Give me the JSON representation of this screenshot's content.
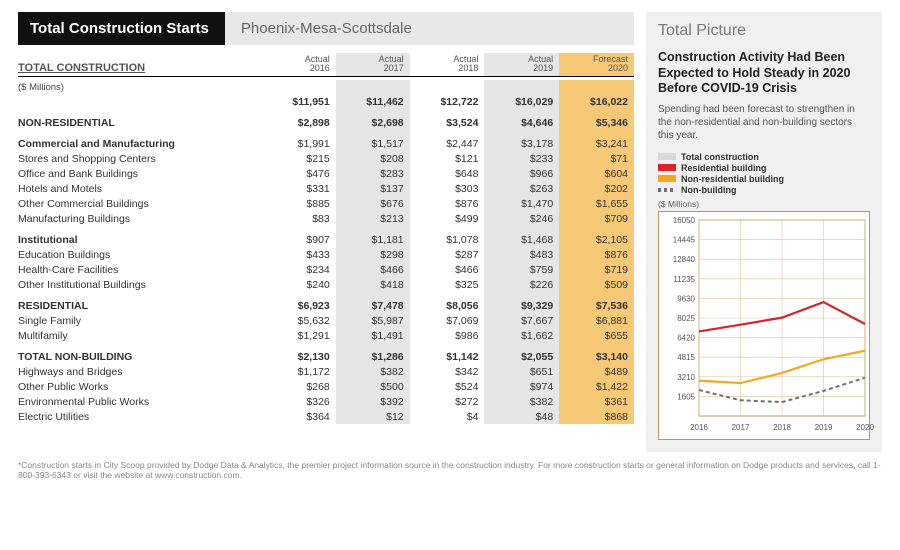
{
  "header": {
    "title": "Total Construction Starts",
    "region": "Phoenix-Mesa-Scottsdale"
  },
  "columns": [
    {
      "label": "Actual",
      "year": "2016",
      "shade": ""
    },
    {
      "label": "Actual",
      "year": "2017",
      "shade": "a"
    },
    {
      "label": "Actual",
      "year": "2018",
      "shade": ""
    },
    {
      "label": "Actual",
      "year": "2019",
      "shade": "a"
    },
    {
      "label": "Forecast",
      "year": "2020",
      "shade": "b"
    }
  ],
  "section_label": "TOTAL CONSTRUCTION",
  "units_label": "($ Millions)",
  "rows": [
    {
      "type": "hr"
    },
    {
      "type": "units"
    },
    {
      "type": "bold",
      "label": "",
      "v": [
        "$11,951",
        "$11,462",
        "$12,722",
        "$16,029",
        "$16,022"
      ]
    },
    {
      "type": "space"
    },
    {
      "type": "bold",
      "label": "NON-RESIDENTIAL",
      "v": [
        "$2,898",
        "$2,698",
        "$3,524",
        "$4,646",
        "$5,346"
      ]
    },
    {
      "type": "space"
    },
    {
      "type": "subbold",
      "label": "Commercial and Manufacturing",
      "v": [
        "$1,991",
        "$1,517",
        "$2,447",
        "$3,178",
        "$3,241"
      ]
    },
    {
      "type": "indent",
      "label": "Stores and Shopping Centers",
      "v": [
        "$215",
        "$208",
        "$121",
        "$233",
        "$71"
      ]
    },
    {
      "type": "indent",
      "label": "Office and Bank Buildings",
      "v": [
        "$476",
        "$283",
        "$648",
        "$966",
        "$604"
      ]
    },
    {
      "type": "indent",
      "label": "Hotels and Motels",
      "v": [
        "$331",
        "$137",
        "$303",
        "$263",
        "$202"
      ]
    },
    {
      "type": "indent",
      "label": "Other Commercial Buildings",
      "v": [
        "$885",
        "$676",
        "$876",
        "$1,470",
        "$1,655"
      ]
    },
    {
      "type": "indent",
      "label": "Manufacturing Buildings",
      "v": [
        "$83",
        "$213",
        "$499",
        "$246",
        "$709"
      ]
    },
    {
      "type": "space"
    },
    {
      "type": "subbold",
      "label": "Institutional",
      "v": [
        "$907",
        "$1,181",
        "$1,078",
        "$1,468",
        "$2,105"
      ]
    },
    {
      "type": "indent",
      "label": "Education Buildings",
      "v": [
        "$433",
        "$298",
        "$287",
        "$483",
        "$876"
      ]
    },
    {
      "type": "indent",
      "label": "Health-Care Facilities",
      "v": [
        "$234",
        "$466",
        "$466",
        "$759",
        "$719"
      ]
    },
    {
      "type": "indent",
      "label": "Other Institutional Buildings",
      "v": [
        "$240",
        "$418",
        "$325",
        "$226",
        "$509"
      ]
    },
    {
      "type": "space"
    },
    {
      "type": "bold",
      "label": "RESIDENTIAL",
      "v": [
        "$6,923",
        "$7,478",
        "$8,056",
        "$9,329",
        "$7,536"
      ]
    },
    {
      "type": "indent",
      "label": "Single Family",
      "v": [
        "$5,632",
        "$5,987",
        "$7,069",
        "$7,667",
        "$6,881"
      ]
    },
    {
      "type": "indent",
      "label": "Multifamily",
      "v": [
        "$1,291",
        "$1,491",
        "$986",
        "$1,662",
        "$655"
      ]
    },
    {
      "type": "space"
    },
    {
      "type": "bold",
      "label": "TOTAL NON-BUILDING",
      "v": [
        "$2,130",
        "$1,286",
        "$1,142",
        "$2,055",
        "$3,140"
      ]
    },
    {
      "type": "indent",
      "label": "Highways and Bridges",
      "v": [
        "$1,172",
        "$382",
        "$342",
        "$651",
        "$489"
      ]
    },
    {
      "type": "indent",
      "label": "Other Public Works",
      "v": [
        "$268",
        "$500",
        "$524",
        "$974",
        "$1,422"
      ]
    },
    {
      "type": "indent",
      "label": "Environmental Public Works",
      "v": [
        "$326",
        "$392",
        "$272",
        "$382",
        "$361"
      ]
    },
    {
      "type": "indent",
      "label": "Electric Utilities",
      "v": [
        "$364",
        "$12",
        "$4",
        "$48",
        "$868"
      ]
    }
  ],
  "sidebar": {
    "title": "Total Picture",
    "headline": "Construction Activity Had Been Expected to Hold Steady in 2020 Before COVID-19 Crisis",
    "lead": "Spending had been forecast to strengthen in the non-residential and non-building sectors this year.",
    "legend": [
      {
        "label": "Total construction",
        "color": "#d9d9d9",
        "style": "solid"
      },
      {
        "label": "Residential building",
        "color": "#d8232a",
        "style": "solid"
      },
      {
        "label": "Non-residential building",
        "color": "#f5a81c",
        "style": "solid"
      },
      {
        "label": "Non-building",
        "color": "#707070",
        "style": "dash"
      }
    ],
    "chart": {
      "caption": "($ Millions)",
      "ylim": [
        0,
        16050
      ],
      "yticks": [
        1605,
        3210,
        4815,
        6420,
        8025,
        9630,
        11235,
        12840,
        14445,
        16050
      ],
      "xlabels": [
        "2016",
        "2017",
        "2018",
        "2019",
        "2020"
      ],
      "grid_color": "#d7c79a",
      "border_color": "#b59a5c",
      "background": "#ffffff",
      "series": {
        "residential": {
          "color": "#d8232a",
          "width": 2.2,
          "values": [
            6923,
            7478,
            8056,
            9329,
            7536
          ]
        },
        "nonresidential": {
          "color": "#f5a81c",
          "width": 2.2,
          "values": [
            2898,
            2698,
            3524,
            4646,
            5346
          ]
        },
        "nonbuilding": {
          "color": "#707070",
          "width": 2.0,
          "dash": "4 3",
          "values": [
            2130,
            1286,
            1142,
            2055,
            3140
          ]
        }
      }
    }
  },
  "footnote": "*Construction starts in City Scoop provided by Dodge Data & Analytics, the premier project information source in the construction industry. For more construction starts or general information on Dodge products and services, call 1-800-393-6343 or visit the website at www.construction.com."
}
